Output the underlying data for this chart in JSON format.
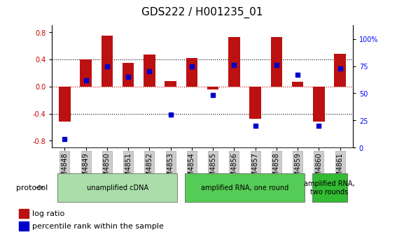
{
  "title": "GDS222 / H001235_01",
  "samples": [
    "GSM4848",
    "GSM4849",
    "GSM4850",
    "GSM4851",
    "GSM4852",
    "GSM4853",
    "GSM4854",
    "GSM4855",
    "GSM4856",
    "GSM4857",
    "GSM4858",
    "GSM4859",
    "GSM4860",
    "GSM4861"
  ],
  "log_ratio": [
    -0.52,
    0.4,
    0.75,
    0.35,
    0.47,
    0.08,
    0.42,
    -0.04,
    0.73,
    -0.48,
    0.73,
    0.07,
    -0.52,
    0.48
  ],
  "percentile": [
    8,
    62,
    75,
    65,
    70,
    30,
    75,
    48,
    76,
    20,
    76,
    67,
    20,
    73
  ],
  "protocols": [
    {
      "label": "unamplified cDNA",
      "start": 0,
      "end": 5,
      "color": "#aaddaa"
    },
    {
      "label": "amplified RNA, one round",
      "start": 6,
      "end": 11,
      "color": "#55cc55"
    },
    {
      "label": "amplified RNA,\ntwo rounds",
      "start": 12,
      "end": 13,
      "color": "#33bb33"
    }
  ],
  "bar_color": "#BB1111",
  "dot_color": "#0000CC",
  "ylim_left": [
    -0.9,
    0.9
  ],
  "ylim_right": [
    0,
    112.5
  ],
  "yticks_left": [
    -0.8,
    -0.4,
    0.0,
    0.4,
    0.8
  ],
  "yticks_right": [
    0,
    25,
    50,
    75,
    100
  ],
  "ytick_labels_right": [
    "0",
    "25",
    "50",
    "75",
    "100%"
  ],
  "bg_color": "#FFFFFF",
  "title_fontsize": 11,
  "tick_fontsize": 7,
  "protocol_fontsize": 8,
  "legend_fontsize": 8
}
